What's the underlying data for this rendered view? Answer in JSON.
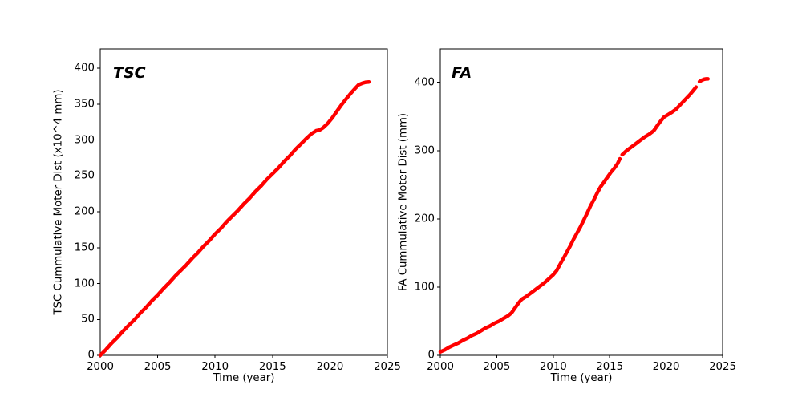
{
  "figure": {
    "background": "#ffffff",
    "text_color": "#000000",
    "series_color": "#ff0000"
  },
  "chart_data": [
    {
      "type": "line",
      "title": "TSC",
      "xlabel": "Time (year)",
      "ylabel": "TSC Cummulative Moter Dist (x10^4 mm)",
      "xlim": [
        2000,
        2025
      ],
      "ylim": [
        0,
        427
      ],
      "xticks": [
        2000,
        2005,
        2010,
        2015,
        2020,
        2025
      ],
      "yticks": [
        0,
        50,
        100,
        150,
        200,
        250,
        300,
        350,
        400
      ],
      "grid": false,
      "legend": null,
      "color": "#ff0000",
      "line_width": 4.5,
      "segments": [
        [
          [
            2000,
            0
          ],
          [
            2000.5,
            8
          ],
          [
            2001,
            17
          ],
          [
            2001.5,
            25
          ],
          [
            2002,
            34
          ],
          [
            2002.5,
            42
          ],
          [
            2003,
            50
          ],
          [
            2003.5,
            59
          ],
          [
            2004,
            67
          ],
          [
            2004.5,
            76
          ],
          [
            2005,
            84
          ],
          [
            2005.5,
            93
          ],
          [
            2006,
            101
          ],
          [
            2006.5,
            110
          ],
          [
            2007,
            118
          ],
          [
            2007.5,
            126
          ],
          [
            2008,
            135
          ],
          [
            2008.5,
            143
          ],
          [
            2009,
            152
          ],
          [
            2009.5,
            160
          ],
          [
            2010,
            169
          ],
          [
            2010.5,
            177
          ],
          [
            2011,
            186
          ],
          [
            2011.5,
            194
          ],
          [
            2012,
            202
          ],
          [
            2012.5,
            211
          ],
          [
            2013,
            219
          ],
          [
            2013.5,
            228
          ],
          [
            2014,
            236
          ],
          [
            2014.5,
            245
          ],
          [
            2015,
            253
          ],
          [
            2015.5,
            261
          ],
          [
            2016,
            270
          ],
          [
            2016.5,
            278
          ],
          [
            2017,
            287
          ],
          [
            2017.5,
            295
          ],
          [
            2018,
            303
          ],
          [
            2018.4,
            309
          ],
          [
            2018.8,
            313
          ],
          [
            2019.1,
            314
          ],
          [
            2019.4,
            317
          ],
          [
            2019.8,
            323
          ],
          [
            2020.2,
            331
          ],
          [
            2020.6,
            340
          ],
          [
            2021,
            349
          ],
          [
            2021.4,
            357
          ],
          [
            2021.8,
            365
          ],
          [
            2022.2,
            372
          ],
          [
            2022.5,
            377
          ],
          [
            2022.8,
            379
          ],
          [
            2023.1,
            380.5
          ],
          [
            2023.4,
            381
          ]
        ]
      ]
    },
    {
      "type": "line",
      "title": "FA",
      "xlabel": "Time (year)",
      "ylabel": "FA Cummulative Moter Dist (mm)",
      "xlim": [
        2000,
        2025
      ],
      "ylim": [
        0,
        449
      ],
      "xticks": [
        2000,
        2005,
        2010,
        2015,
        2020,
        2025
      ],
      "yticks": [
        0,
        100,
        200,
        300,
        400
      ],
      "grid": false,
      "legend": null,
      "color": "#ff0000",
      "line_width": 4.5,
      "segments": [
        [
          [
            2000,
            5
          ],
          [
            2000.4,
            8
          ],
          [
            2000.8,
            12
          ],
          [
            2001.2,
            15
          ],
          [
            2001.6,
            18
          ],
          [
            2002,
            22
          ],
          [
            2002.4,
            25
          ],
          [
            2002.8,
            29
          ],
          [
            2003.2,
            32
          ],
          [
            2003.6,
            36
          ],
          [
            2004,
            40
          ],
          [
            2004.4,
            43
          ],
          [
            2004.8,
            47
          ],
          [
            2005.2,
            50
          ],
          [
            2005.6,
            54
          ],
          [
            2006,
            58
          ],
          [
            2006.3,
            62
          ],
          [
            2006.6,
            69
          ],
          [
            2006.9,
            76
          ],
          [
            2007.2,
            82
          ],
          [
            2007.6,
            86
          ],
          [
            2008,
            91
          ],
          [
            2008.4,
            96
          ],
          [
            2008.8,
            101
          ],
          [
            2009.2,
            106
          ],
          [
            2009.6,
            112
          ],
          [
            2010,
            118
          ],
          [
            2010.3,
            124
          ],
          [
            2010.6,
            133
          ],
          [
            2010.9,
            142
          ],
          [
            2011.2,
            151
          ],
          [
            2011.5,
            160
          ],
          [
            2011.8,
            170
          ],
          [
            2012.1,
            179
          ],
          [
            2012.4,
            188
          ],
          [
            2012.7,
            198
          ],
          [
            2013,
            208
          ],
          [
            2013.3,
            219
          ],
          [
            2013.6,
            228
          ],
          [
            2013.9,
            238
          ],
          [
            2014.2,
            247
          ],
          [
            2014.5,
            254
          ],
          [
            2014.8,
            261
          ],
          [
            2015.1,
            268
          ],
          [
            2015.4,
            274
          ],
          [
            2015.7,
            281
          ],
          [
            2015.9,
            288
          ]
        ],
        [
          [
            2016.1,
            294
          ],
          [
            2016.5,
            300
          ],
          [
            2016.9,
            305
          ],
          [
            2017.3,
            310
          ],
          [
            2017.7,
            315
          ],
          [
            2018.1,
            320
          ],
          [
            2018.5,
            324
          ],
          [
            2018.9,
            329
          ],
          [
            2019.2,
            336
          ],
          [
            2019.5,
            343
          ],
          [
            2019.8,
            349
          ],
          [
            2020.1,
            352
          ],
          [
            2020.5,
            356
          ],
          [
            2020.9,
            361
          ],
          [
            2021.3,
            368
          ],
          [
            2021.7,
            375
          ],
          [
            2022.1,
            382
          ],
          [
            2022.4,
            388
          ],
          [
            2022.65,
            393
          ]
        ],
        [
          [
            2022.95,
            401
          ],
          [
            2023.15,
            403
          ],
          [
            2023.35,
            404.5
          ],
          [
            2023.55,
            405
          ],
          [
            2023.7,
            405
          ]
        ]
      ]
    }
  ]
}
